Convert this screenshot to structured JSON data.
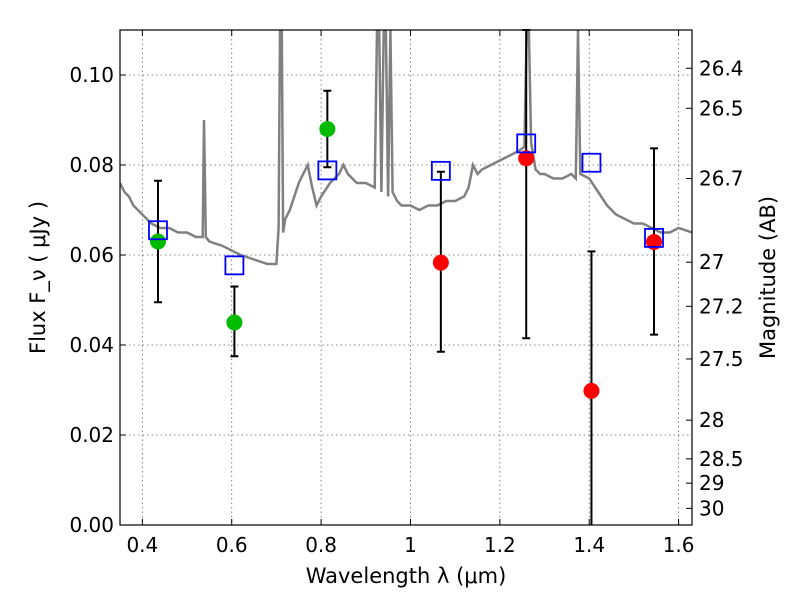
{
  "chart_data": {
    "type": "scatter",
    "title": "",
    "xlabel": "Wavelength  λ (μm)",
    "ylabel_left": "Flux  F_ν  ( μJy )",
    "ylabel_right": "Magnitude (AB)",
    "xlim": [
      0.35,
      1.63
    ],
    "ylim": [
      0.0,
      0.11
    ],
    "grid": true,
    "x_ticks": [
      0.4,
      0.6,
      0.8,
      1.0,
      1.2,
      1.4,
      1.6
    ],
    "x_tick_labels": [
      "0.4",
      "0.6",
      "0.8",
      "1",
      "1.2",
      "1.4",
      "1.6"
    ],
    "y_ticks": [
      0.0,
      0.02,
      0.04,
      0.06,
      0.08,
      0.1
    ],
    "y_tick_labels": [
      "0.00",
      "0.02",
      "0.04",
      "0.06",
      "0.08",
      "0.10"
    ],
    "right_ticks": [
      {
        "label": "26.4",
        "flux": 0.1015
      },
      {
        "label": "26.5",
        "flux": 0.0926
      },
      {
        "label": "26.7",
        "flux": 0.077
      },
      {
        "label": "27",
        "flux": 0.0584
      },
      {
        "label": "27.2",
        "flux": 0.0486
      },
      {
        "label": "27.5",
        "flux": 0.0369
      },
      {
        "label": "28",
        "flux": 0.0233
      },
      {
        "label": "28.5",
        "flux": 0.0147
      },
      {
        "label": "29",
        "flux": 0.0093
      },
      {
        "label": "30",
        "flux": 0.0037
      }
    ],
    "series": [
      {
        "color": "#808080",
        "type": "line",
        "x": [
          0.35,
          0.36,
          0.37,
          0.38,
          0.39,
          0.4,
          0.41,
          0.42,
          0.44,
          0.46,
          0.48,
          0.5,
          0.52,
          0.535,
          0.538,
          0.542,
          0.55,
          0.58,
          0.6,
          0.62,
          0.65,
          0.68,
          0.7,
          0.705,
          0.708,
          0.712,
          0.715,
          0.72,
          0.73,
          0.74,
          0.75,
          0.76,
          0.77,
          0.78,
          0.79,
          0.8,
          0.82,
          0.84,
          0.85,
          0.86,
          0.87,
          0.88,
          0.9,
          0.92,
          0.925,
          0.93,
          0.935,
          0.94,
          0.945,
          0.95,
          0.955,
          0.96,
          0.97,
          0.98,
          1.0,
          1.02,
          1.04,
          1.06,
          1.08,
          1.1,
          1.12,
          1.13,
          1.14,
          1.15,
          1.16,
          1.18,
          1.2,
          1.22,
          1.24,
          1.255,
          1.26,
          1.265,
          1.27,
          1.28,
          1.29,
          1.3,
          1.32,
          1.34,
          1.36,
          1.37,
          1.375,
          1.38,
          1.4,
          1.42,
          1.44,
          1.46,
          1.48,
          1.5,
          1.52,
          1.54,
          1.56,
          1.58,
          1.6,
          1.63
        ],
        "y": [
          0.076,
          0.074,
          0.073,
          0.071,
          0.07,
          0.069,
          0.068,
          0.067,
          0.066,
          0.066,
          0.065,
          0.065,
          0.064,
          0.064,
          0.09,
          0.064,
          0.063,
          0.062,
          0.061,
          0.06,
          0.059,
          0.058,
          0.058,
          0.066,
          0.11,
          0.11,
          0.065,
          0.068,
          0.07,
          0.073,
          0.076,
          0.078,
          0.08,
          0.075,
          0.071,
          0.073,
          0.076,
          0.078,
          0.08,
          0.078,
          0.077,
          0.076,
          0.076,
          0.075,
          0.11,
          0.11,
          0.074,
          0.11,
          0.11,
          0.073,
          0.11,
          0.074,
          0.072,
          0.071,
          0.071,
          0.07,
          0.071,
          0.071,
          0.072,
          0.072,
          0.073,
          0.075,
          0.08,
          0.078,
          0.079,
          0.08,
          0.081,
          0.082,
          0.083,
          0.084,
          0.11,
          0.11,
          0.085,
          0.079,
          0.078,
          0.078,
          0.077,
          0.077,
          0.078,
          0.077,
          0.11,
          0.078,
          0.077,
          0.074,
          0.071,
          0.069,
          0.068,
          0.067,
          0.067,
          0.066,
          0.065,
          0.065,
          0.066,
          0.065
        ]
      },
      {
        "color": "#00bb00",
        "type": "points",
        "points": [
          {
            "x": 0.435,
            "y": 0.063,
            "yerr_lo": 0.0495,
            "yerr_hi": 0.0765
          },
          {
            "x": 0.606,
            "y": 0.045,
            "yerr_lo": 0.0375,
            "yerr_hi": 0.053
          },
          {
            "x": 0.814,
            "y": 0.088,
            "yerr_lo": 0.0795,
            "yerr_hi": 0.0965
          }
        ]
      },
      {
        "color": "#ff0000",
        "type": "points",
        "points": [
          {
            "x": 1.068,
            "y": 0.0583,
            "yerr_lo": 0.0385,
            "yerr_hi": 0.0785
          },
          {
            "x": 1.259,
            "y": 0.0815,
            "yerr_lo": 0.0415,
            "yerr_hi": 0.11
          },
          {
            "x": 1.405,
            "y": 0.0298,
            "yerr_lo": 0.0,
            "yerr_hi": 0.0608
          },
          {
            "x": 1.545,
            "y": 0.0629,
            "yerr_lo": 0.0423,
            "yerr_hi": 0.0837
          }
        ]
      },
      {
        "color": "#0000ff",
        "type": "squares",
        "points": [
          {
            "x": 0.435,
            "y": 0.0655
          },
          {
            "x": 0.606,
            "y": 0.0577
          },
          {
            "x": 0.814,
            "y": 0.0788
          },
          {
            "x": 1.068,
            "y": 0.0787
          },
          {
            "x": 1.259,
            "y": 0.0848
          },
          {
            "x": 1.405,
            "y": 0.0805
          },
          {
            "x": 1.545,
            "y": 0.0638
          }
        ]
      }
    ]
  }
}
